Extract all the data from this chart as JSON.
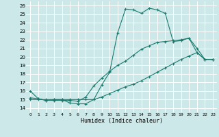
{
  "xlabel": "Humidex (Indice chaleur)",
  "bg_color": "#cce8e8",
  "grid_color": "#ffffff",
  "line_color": "#1a7a6e",
  "xlim": [
    -0.5,
    23.5
  ],
  "ylim": [
    13.5,
    26.5
  ],
  "xticks": [
    0,
    1,
    2,
    3,
    4,
    5,
    6,
    7,
    8,
    9,
    10,
    11,
    12,
    13,
    14,
    15,
    16,
    17,
    18,
    19,
    20,
    21,
    22,
    23
  ],
  "yticks": [
    14,
    15,
    16,
    17,
    18,
    19,
    20,
    21,
    22,
    23,
    24,
    25,
    26
  ],
  "series1_x": [
    0,
    1,
    2,
    3,
    4,
    5,
    6,
    7,
    8,
    9,
    10,
    11,
    12,
    13,
    14,
    15,
    16,
    17,
    18,
    19,
    20,
    21,
    22,
    23
  ],
  "series1_y": [
    16.0,
    15.1,
    14.9,
    15.0,
    15.0,
    14.6,
    14.5,
    14.5,
    15.0,
    16.7,
    18.2,
    22.8,
    25.6,
    25.5,
    25.1,
    25.7,
    25.5,
    25.1,
    21.8,
    21.9,
    22.2,
    20.5,
    19.7,
    19.7
  ],
  "series2_x": [
    0,
    1,
    2,
    3,
    4,
    5,
    6,
    7,
    8,
    9,
    10,
    11,
    12,
    13,
    14,
    15,
    16,
    17,
    18,
    19,
    20,
    21,
    22,
    23
  ],
  "series2_y": [
    15.2,
    15.1,
    14.9,
    14.9,
    14.9,
    14.9,
    14.8,
    15.3,
    16.6,
    17.5,
    18.3,
    19.0,
    19.5,
    20.2,
    20.9,
    21.3,
    21.7,
    21.8,
    21.9,
    22.0,
    22.2,
    21.0,
    19.7,
    19.7
  ],
  "series3_x": [
    0,
    1,
    2,
    3,
    4,
    5,
    6,
    7,
    8,
    9,
    10,
    11,
    12,
    13,
    14,
    15,
    16,
    17,
    18,
    19,
    20,
    21,
    22,
    23
  ],
  "series3_y": [
    15.0,
    15.0,
    15.0,
    15.0,
    15.0,
    15.0,
    15.0,
    15.0,
    15.0,
    15.3,
    15.7,
    16.1,
    16.5,
    16.8,
    17.2,
    17.7,
    18.2,
    18.7,
    19.2,
    19.7,
    20.1,
    20.5,
    19.7,
    19.7
  ]
}
